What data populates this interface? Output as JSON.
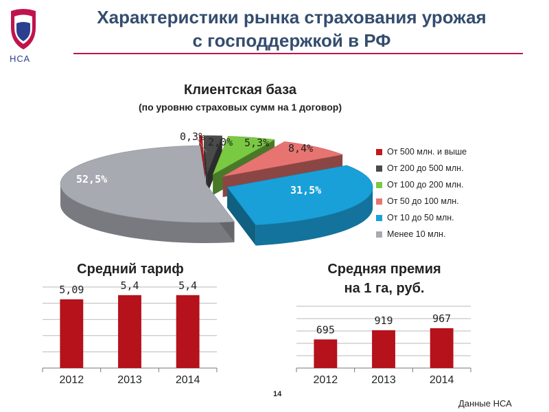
{
  "header": {
    "logo_text": "НСА",
    "title_line1": "Характеристики рынка страхования урожая",
    "title_line2": "с господдержкой в РФ"
  },
  "colors": {
    "title": "#344d6e",
    "accent_rule": "#c0134c",
    "bar": "#b5121b"
  },
  "chart_data": [
    {
      "type": "pie",
      "title": "Клиентская база",
      "subtitle": "(по уровню страховых сумм на 1 договор)",
      "legend_position": "right",
      "slices": [
        {
          "label": "От 500 млн. и выше",
          "value": 0.3,
          "value_label": "0,3%",
          "color": "#c0191f"
        },
        {
          "label": "От 200 до 500 млн.",
          "value": 2.0,
          "value_label": "2,0%",
          "color": "#4a4a4a"
        },
        {
          "label": "От 100 до 200 млн.",
          "value": 5.3,
          "value_label": "5,3%",
          "color": "#7ac943"
        },
        {
          "label": "От 50 до 100 млн.",
          "value": 8.4,
          "value_label": "8,4%",
          "color": "#e87471"
        },
        {
          "label": "От 10 до 50 млн.",
          "value": 31.5,
          "value_label": "31,5%",
          "color": "#1aa0d8"
        },
        {
          "label": "Менее 10 млн.",
          "value": 52.5,
          "value_label": "52,5%",
          "color": "#a7aab1"
        }
      ]
    },
    {
      "type": "bar",
      "title": "Средний тариф",
      "categories": [
        "2012",
        "2013",
        "2014"
      ],
      "values": [
        5.09,
        5.4,
        5.4
      ],
      "value_labels": [
        "5,09",
        "5,4",
        "5,4"
      ],
      "ylim": [
        0,
        6
      ],
      "grid": true,
      "color": "#b5121b"
    },
    {
      "type": "bar",
      "title": "Средняя премия\nна 1 га, руб.",
      "title_line1": "Средняя премия",
      "title_line2": "на 1 га, руб.",
      "categories": [
        "2012",
        "2013",
        "2014"
      ],
      "values": [
        695,
        919,
        967
      ],
      "value_labels": [
        "695",
        "919",
        "967"
      ],
      "ylim": [
        0,
        1500
      ],
      "grid": true,
      "color": "#b5121b"
    }
  ],
  "footer": {
    "page_number": "14",
    "source": "Данные НСА"
  }
}
